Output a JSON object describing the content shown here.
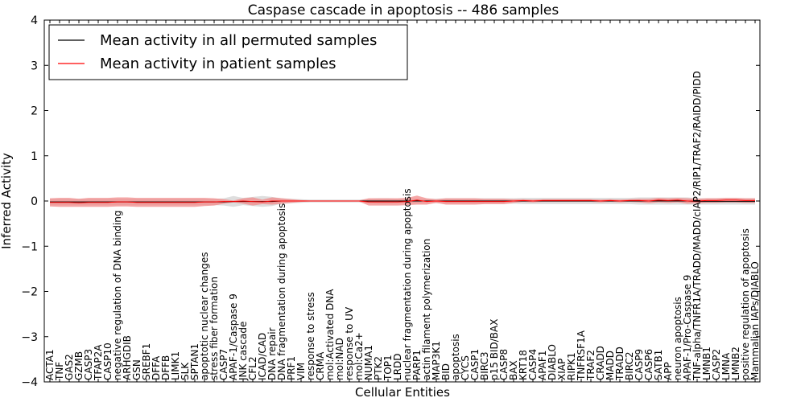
{
  "chart_data": {
    "type": "line",
    "title": "Caspase cascade in apoptosis -- 486 samples",
    "xlabel": "Cellular Entities",
    "ylabel": "Inferred Activity",
    "ylim": [
      -4,
      4
    ],
    "yticks": [
      -4,
      -3,
      -2,
      -1,
      0,
      1,
      2,
      3,
      4
    ],
    "legend_position": "top-left",
    "categories": [
      "ACTA1",
      "TNF",
      "GAS2",
      "GZMB",
      "CASP3",
      "TFAP2A",
      "CASP10",
      "negative regulation of DNA binding",
      "ARHGDIB",
      "GSN",
      "SREBF1",
      "DFFA",
      "DFFB",
      "LIMK1",
      "SLK",
      "SPTAN1",
      "apoptotic nuclear changes",
      "stress fiber formation",
      "CASP7",
      "APAF-1/Caspase 9",
      "JNK cascade",
      "CFL2",
      "ICAD/CAD",
      "DNA repair",
      "DNA fragmentation during apoptosis",
      "PRF1",
      "VIM",
      "response to stress",
      "CRMA",
      "mol:Activated DNA",
      "mol:NAD",
      "response to UV",
      "mol:Ca2+",
      "NUMA1",
      "PTK2",
      "TOP1",
      "LRDD",
      "nuclear fragmentation during apoptosis",
      "PARP1",
      "actin filament polymerization",
      "MAP3K1",
      "BID",
      "apoptosis",
      "CYCS",
      "CASP1",
      "BIRC3",
      "p15 BID/BAX",
      "CASP8",
      "BAX",
      "KRT18",
      "CASP4",
      "APAF1",
      "DIABLO",
      "XIAP",
      "RIPK1",
      "TNFRSF1A",
      "TRAF2",
      "CRADD",
      "MADD",
      "TRADD",
      "BIRC2",
      "CASP9",
      "CASP6",
      "SATB1",
      "APP",
      "neuron apoptosis",
      "APAF-1/Pro-Caspase 9",
      "TNF-alpha/TNFR1A/TRADD/MADD/cIAP2/RIP1/TRAF2/RAIDD/PIDD",
      "LMNB1",
      "CASP2",
      "LMNA",
      "LMNB2",
      "positive regulation of apoptosis",
      "Mammalian IAPs/DIABLO"
    ],
    "series": [
      {
        "name": "Mean activity in all permuted samples",
        "color": "#000000",
        "values": [
          -0.02,
          -0.02,
          -0.02,
          -0.02,
          -0.02,
          -0.02,
          -0.02,
          -0.02,
          -0.02,
          -0.02,
          -0.02,
          -0.02,
          -0.02,
          -0.02,
          -0.02,
          -0.02,
          -0.02,
          -0.02,
          -0.02,
          -0.01,
          -0.01,
          -0.01,
          -0.01,
          -0.01,
          0.0,
          0.0,
          0.0,
          0.0,
          0.0,
          0.0,
          0.0,
          0.0,
          0.0,
          0.0,
          0.0,
          0.0,
          0.0,
          0.0,
          0.0,
          0.0,
          0.0,
          0.0,
          0.0,
          0.0,
          0.0,
          0.0,
          0.0,
          0.0,
          0.0,
          0.0,
          0.0,
          0.0,
          0.0,
          0.0,
          0.0,
          0.0,
          0.0,
          0.0,
          0.0,
          0.0,
          0.0,
          0.0,
          0.0,
          0.0,
          0.0,
          0.0,
          0.0,
          -0.01,
          -0.01,
          -0.01,
          -0.01,
          -0.01,
          -0.01,
          -0.01
        ],
        "band": [
          0.07,
          0.07,
          0.07,
          0.07,
          0.07,
          0.07,
          0.07,
          0.07,
          0.07,
          0.07,
          0.07,
          0.07,
          0.07,
          0.07,
          0.07,
          0.07,
          0.07,
          0.07,
          0.08,
          0.12,
          0.08,
          0.1,
          0.12,
          0.1,
          0.06,
          0.05,
          0.04,
          0.03,
          0.03,
          0.03,
          0.03,
          0.03,
          0.03,
          0.05,
          0.06,
          0.06,
          0.05,
          0.05,
          0.05,
          0.05,
          0.05,
          0.06,
          0.06,
          0.06,
          0.06,
          0.06,
          0.06,
          0.06,
          0.06,
          0.07,
          0.07,
          0.07,
          0.07,
          0.07,
          0.07,
          0.07,
          0.07,
          0.07,
          0.07,
          0.07,
          0.07,
          0.08,
          0.08,
          0.08,
          0.08,
          0.08,
          0.08,
          0.07,
          0.07,
          0.07,
          0.07,
          0.07,
          0.07,
          0.07
        ]
      },
      {
        "name": "Mean activity in patient samples",
        "color": "#ff0000",
        "values": [
          -0.03,
          -0.03,
          -0.03,
          -0.04,
          -0.03,
          -0.03,
          -0.03,
          -0.02,
          -0.02,
          -0.03,
          -0.03,
          -0.03,
          -0.03,
          -0.03,
          -0.03,
          -0.03,
          -0.02,
          -0.02,
          -0.01,
          -0.01,
          0.0,
          -0.01,
          -0.02,
          0.0,
          0.0,
          0.0,
          0.0,
          0.0,
          0.0,
          0.0,
          0.0,
          0.0,
          0.0,
          -0.02,
          -0.02,
          -0.02,
          -0.02,
          -0.01,
          0.02,
          -0.01,
          0.0,
          -0.01,
          -0.01,
          -0.01,
          -0.01,
          -0.01,
          -0.01,
          -0.01,
          0.0,
          0.01,
          0.0,
          0.01,
          0.01,
          0.01,
          0.01,
          0.01,
          0.01,
          0.0,
          0.01,
          0.0,
          0.01,
          0.01,
          0.0,
          0.02,
          0.01,
          0.02,
          0.0,
          0.0,
          0.01,
          0.01,
          0.02,
          0.02,
          0.01,
          0.01
        ],
        "band": [
          0.09,
          0.1,
          0.1,
          0.09,
          0.1,
          0.1,
          0.1,
          0.1,
          0.1,
          0.1,
          0.1,
          0.1,
          0.1,
          0.1,
          0.1,
          0.1,
          0.09,
          0.08,
          0.05,
          0.02,
          0.06,
          0.09,
          0.05,
          0.08,
          0.06,
          0.04,
          0.02,
          0.01,
          0.01,
          0.01,
          0.01,
          0.01,
          0.01,
          0.08,
          0.08,
          0.08,
          0.08,
          0.08,
          0.1,
          0.07,
          0.04,
          0.07,
          0.07,
          0.07,
          0.07,
          0.06,
          0.06,
          0.06,
          0.04,
          0.03,
          0.03,
          0.03,
          0.03,
          0.03,
          0.03,
          0.03,
          0.03,
          0.03,
          0.03,
          0.03,
          0.03,
          0.04,
          0.05,
          0.05,
          0.05,
          0.05,
          0.06,
          0.05,
          0.05,
          0.05,
          0.05,
          0.05,
          0.05,
          0.05
        ]
      }
    ]
  }
}
